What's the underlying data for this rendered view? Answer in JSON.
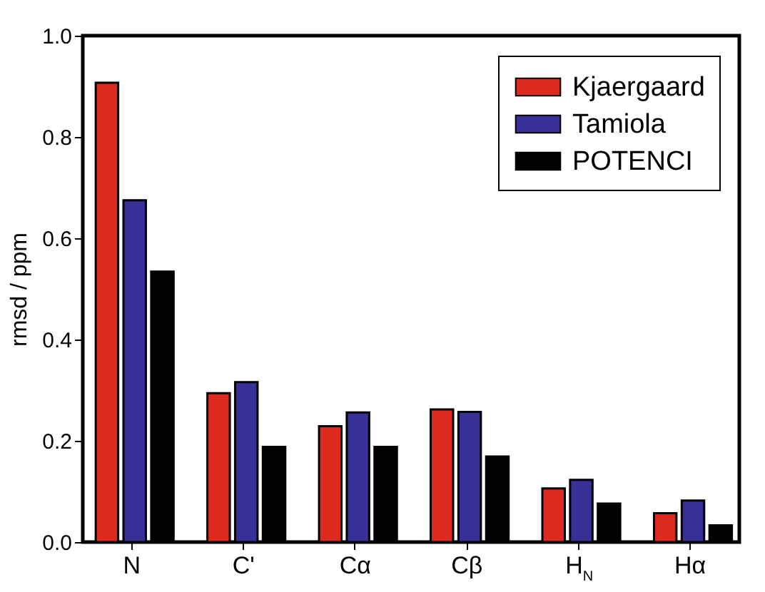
{
  "chart_data": {
    "type": "bar",
    "ylabel": "rmsd / ppm",
    "categories": [
      "N",
      "C'",
      "Cα",
      "Cβ",
      "H$_{N}$",
      "Hα"
    ],
    "series": [
      {
        "name": "Kjaergaard",
        "color": "#dc2a1e",
        "values": [
          0.907,
          0.294,
          0.229,
          0.262,
          0.106,
          0.057
        ]
      },
      {
        "name": "Tamiola",
        "color": "#383096",
        "values": [
          0.675,
          0.316,
          0.256,
          0.257,
          0.123,
          0.082
        ]
      },
      {
        "name": "POTENCI",
        "color": "#000000",
        "values": [
          0.534,
          0.188,
          0.188,
          0.169,
          0.076,
          0.033
        ]
      }
    ],
    "ylim": [
      0,
      1.0
    ],
    "yticks": [
      {
        "value": 0,
        "label": "0.0"
      },
      {
        "value": 0.2,
        "label": "0.2"
      },
      {
        "value": 0.4,
        "label": "0.4"
      },
      {
        "value": 0.6,
        "label": "0.6"
      },
      {
        "value": 0.8,
        "label": "0.8"
      },
      {
        "value": 1.0,
        "label": "1.0"
      }
    ],
    "grid": false,
    "legend": "top right"
  }
}
